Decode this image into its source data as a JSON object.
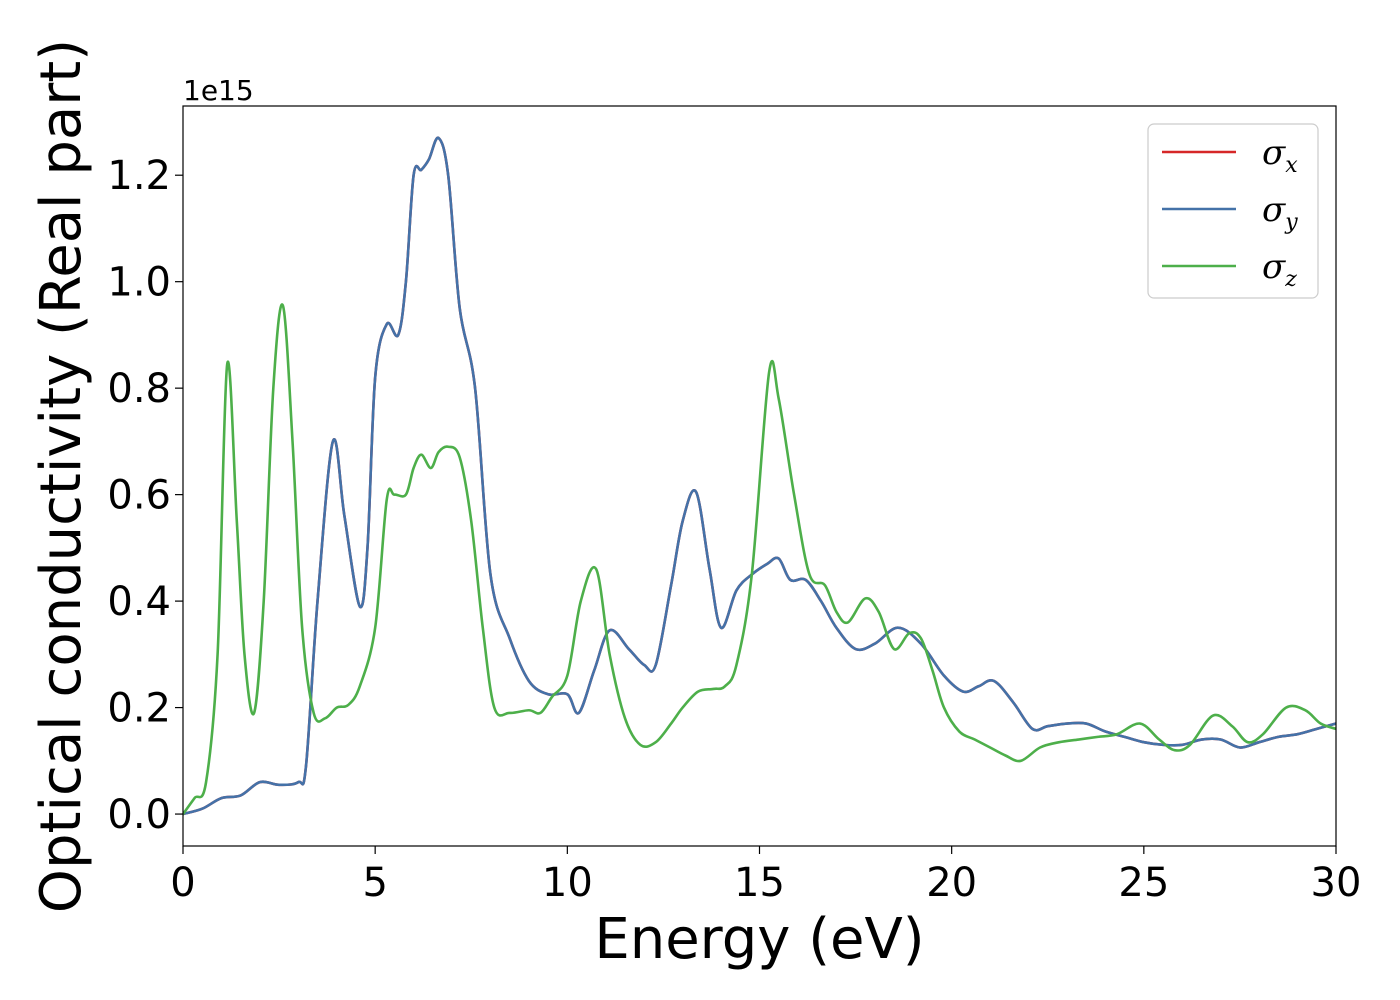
{
  "chart_data": {
    "type": "line",
    "xlabel": "Energy (eV)",
    "ylabel": "Optical conductivity (Real part)",
    "y_offset_label": "1e15",
    "xlim": [
      0,
      30
    ],
    "ylim": [
      -0.06,
      1.33
    ],
    "x_ticks": [
      0,
      5,
      10,
      15,
      20,
      25,
      30
    ],
    "x_tick_labels": [
      "0",
      "5",
      "10",
      "15",
      "20",
      "25",
      "30"
    ],
    "y_ticks": [
      0.0,
      0.2,
      0.4,
      0.6,
      0.8,
      1.0,
      1.2
    ],
    "y_tick_labels": [
      "0.0",
      "0.2",
      "0.4",
      "0.6",
      "0.8",
      "1.0",
      "1.2"
    ],
    "grid": false,
    "legend_position": "top-right",
    "series": [
      {
        "name": "σ_x",
        "label_base": "σ",
        "label_sub": "x",
        "color": "#d62728",
        "x": [
          0,
          0.5,
          1,
          1.5,
          2,
          2.5,
          3,
          3.2,
          3.5,
          3.9,
          4.2,
          4.6,
          4.8,
          5.0,
          5.3,
          5.6,
          5.8,
          6.0,
          6.2,
          6.4,
          6.65,
          6.9,
          7.2,
          7.6,
          8.0,
          8.5,
          9.0,
          9.5,
          10.0,
          10.3,
          10.7,
          11.1,
          11.6,
          12.0,
          12.3,
          12.7,
          13.0,
          13.35,
          13.7,
          14.0,
          14.4,
          14.8,
          15.2,
          15.5,
          15.8,
          16.2,
          16.6,
          17.0,
          17.5,
          18.0,
          18.6,
          19.2,
          19.8,
          20.3,
          20.7,
          21.1,
          21.6,
          22.1,
          22.5,
          23.0,
          23.5,
          24.0,
          24.5,
          25.0,
          25.5,
          26.0,
          26.5,
          27.0,
          27.5,
          28.0,
          28.5,
          29.0,
          29.5,
          30.0
        ],
        "y": [
          0.0,
          0.01,
          0.03,
          0.035,
          0.06,
          0.055,
          0.06,
          0.09,
          0.4,
          0.7,
          0.56,
          0.39,
          0.5,
          0.82,
          0.92,
          0.9,
          1.0,
          1.2,
          1.21,
          1.23,
          1.27,
          1.2,
          0.95,
          0.8,
          0.45,
          0.33,
          0.25,
          0.225,
          0.225,
          0.19,
          0.27,
          0.345,
          0.31,
          0.28,
          0.28,
          0.43,
          0.55,
          0.605,
          0.46,
          0.35,
          0.42,
          0.45,
          0.47,
          0.48,
          0.44,
          0.44,
          0.4,
          0.35,
          0.31,
          0.32,
          0.35,
          0.32,
          0.26,
          0.23,
          0.24,
          0.25,
          0.21,
          0.16,
          0.165,
          0.17,
          0.17,
          0.155,
          0.145,
          0.135,
          0.13,
          0.13,
          0.14,
          0.14,
          0.125,
          0.135,
          0.145,
          0.15,
          0.16,
          0.17
        ]
      },
      {
        "name": "σ_y",
        "label_base": "σ",
        "label_sub": "y",
        "color": "#4472a8",
        "x": [
          0,
          0.5,
          1,
          1.5,
          2,
          2.5,
          3,
          3.2,
          3.5,
          3.9,
          4.2,
          4.6,
          4.8,
          5.0,
          5.3,
          5.6,
          5.8,
          6.0,
          6.2,
          6.4,
          6.65,
          6.9,
          7.2,
          7.6,
          8.0,
          8.5,
          9.0,
          9.5,
          10.0,
          10.3,
          10.7,
          11.1,
          11.6,
          12.0,
          12.3,
          12.7,
          13.0,
          13.35,
          13.7,
          14.0,
          14.4,
          14.8,
          15.2,
          15.5,
          15.8,
          16.2,
          16.6,
          17.0,
          17.5,
          18.0,
          18.6,
          19.2,
          19.8,
          20.3,
          20.7,
          21.1,
          21.6,
          22.1,
          22.5,
          23.0,
          23.5,
          24.0,
          24.5,
          25.0,
          25.5,
          26.0,
          26.5,
          27.0,
          27.5,
          28.0,
          28.5,
          29.0,
          29.5,
          30.0
        ],
        "y": [
          0.0,
          0.01,
          0.03,
          0.035,
          0.06,
          0.055,
          0.06,
          0.09,
          0.4,
          0.7,
          0.56,
          0.39,
          0.5,
          0.82,
          0.92,
          0.9,
          1.0,
          1.2,
          1.21,
          1.23,
          1.27,
          1.2,
          0.95,
          0.8,
          0.45,
          0.33,
          0.25,
          0.225,
          0.225,
          0.19,
          0.27,
          0.345,
          0.31,
          0.28,
          0.28,
          0.43,
          0.55,
          0.605,
          0.46,
          0.35,
          0.42,
          0.45,
          0.47,
          0.48,
          0.44,
          0.44,
          0.4,
          0.35,
          0.31,
          0.32,
          0.35,
          0.32,
          0.26,
          0.23,
          0.24,
          0.25,
          0.21,
          0.16,
          0.165,
          0.17,
          0.17,
          0.155,
          0.145,
          0.135,
          0.13,
          0.13,
          0.14,
          0.14,
          0.125,
          0.135,
          0.145,
          0.15,
          0.16,
          0.17
        ]
      },
      {
        "name": "σ_z",
        "label_base": "σ",
        "label_sub": "z",
        "color": "#4daf4a",
        "x": [
          0,
          0.3,
          0.6,
          0.9,
          1.15,
          1.4,
          1.6,
          1.85,
          2.1,
          2.35,
          2.6,
          2.85,
          3.1,
          3.4,
          3.7,
          4.0,
          4.3,
          4.6,
          5.0,
          5.3,
          5.5,
          5.8,
          6.0,
          6.2,
          6.45,
          6.65,
          6.9,
          7.2,
          7.5,
          7.8,
          8.1,
          8.5,
          9.0,
          9.3,
          9.6,
          10.0,
          10.35,
          10.75,
          11.1,
          11.5,
          11.9,
          12.3,
          12.7,
          13.0,
          13.4,
          13.8,
          14.1,
          14.4,
          14.8,
          15.25,
          15.5,
          15.9,
          16.3,
          16.7,
          17.0,
          17.3,
          17.75,
          18.1,
          18.5,
          18.9,
          19.2,
          19.5,
          19.8,
          20.2,
          20.6,
          21.0,
          21.4,
          21.8,
          22.3,
          22.8,
          23.3,
          23.8,
          24.3,
          24.9,
          25.4,
          25.8,
          26.2,
          26.8,
          27.3,
          27.7,
          28.1,
          28.7,
          29.2,
          29.6,
          30.0
        ],
        "y": [
          0.0,
          0.03,
          0.06,
          0.3,
          0.845,
          0.55,
          0.3,
          0.19,
          0.4,
          0.8,
          0.955,
          0.7,
          0.35,
          0.19,
          0.18,
          0.2,
          0.205,
          0.24,
          0.35,
          0.59,
          0.6,
          0.6,
          0.65,
          0.675,
          0.65,
          0.68,
          0.69,
          0.67,
          0.55,
          0.35,
          0.2,
          0.19,
          0.195,
          0.19,
          0.22,
          0.26,
          0.4,
          0.46,
          0.3,
          0.18,
          0.13,
          0.135,
          0.17,
          0.2,
          0.23,
          0.235,
          0.24,
          0.28,
          0.45,
          0.83,
          0.78,
          0.6,
          0.45,
          0.43,
          0.38,
          0.36,
          0.405,
          0.38,
          0.31,
          0.34,
          0.33,
          0.27,
          0.2,
          0.155,
          0.14,
          0.125,
          0.11,
          0.1,
          0.125,
          0.135,
          0.14,
          0.145,
          0.15,
          0.17,
          0.14,
          0.12,
          0.13,
          0.185,
          0.165,
          0.135,
          0.15,
          0.2,
          0.195,
          0.17,
          0.16
        ]
      }
    ]
  }
}
